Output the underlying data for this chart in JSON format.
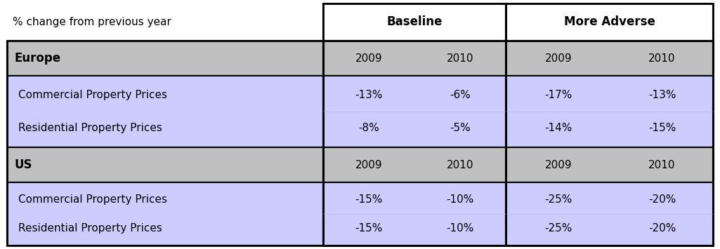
{
  "title_text": "% change from previous year",
  "col0_header": "% change from previous year",
  "baseline_label": "Baseline",
  "adverse_label": "More Adverse",
  "europe_label": "Europe",
  "us_label": "US",
  "year_labels": [
    "2009",
    "2010",
    "2009",
    "2010"
  ],
  "europe_commercial": [
    "-13%",
    "-6%",
    "-17%",
    "-13%"
  ],
  "europe_residential": [
    "-8%",
    "-5%",
    "-14%",
    "-15%"
  ],
  "us_commercial": [
    "-15%",
    "-10%",
    "-25%",
    "-20%"
  ],
  "us_residential": [
    "-15%",
    "-10%",
    "-25%",
    "-20%"
  ],
  "label_commercial": "Commercial Property Prices",
  "label_residential": "Residential Property Prices",
  "color_white": "#ffffff",
  "color_gray": "#c0c0c0",
  "color_purple": "#ccccff",
  "color_border": "#000000",
  "figsize": [
    10.25,
    3.55
  ],
  "dpi": 100
}
